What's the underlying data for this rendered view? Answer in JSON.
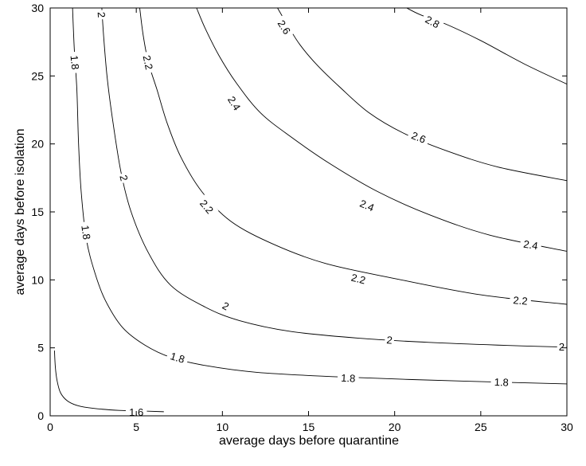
{
  "chart_data": {
    "type": "contour",
    "title": "",
    "xlabel": "average days before quarantine",
    "ylabel": "average days before isolation",
    "xlim": [
      0,
      30
    ],
    "ylim": [
      0,
      30
    ],
    "xticks": [
      "0",
      "5",
      "10",
      "15",
      "20",
      "25",
      "30"
    ],
    "yticks": [
      "0",
      "5",
      "10",
      "15",
      "20",
      "25",
      "30"
    ],
    "grid": false,
    "contours": [
      {
        "level": "1.6",
        "points": [
          [
            0.25,
            4.8
          ],
          [
            0.3,
            3.6
          ],
          [
            0.4,
            2.6
          ],
          [
            0.6,
            1.7
          ],
          [
            1.0,
            1.1
          ],
          [
            1.6,
            0.75
          ],
          [
            2.5,
            0.55
          ],
          [
            4.0,
            0.4
          ],
          [
            5.5,
            0.35
          ],
          [
            6.6,
            0.3
          ]
        ],
        "labels": [
          {
            "text": "1.6",
            "x": 5.0,
            "y": 0.3,
            "angle": 0
          }
        ]
      },
      {
        "level": "1.8",
        "points": [
          [
            1.3,
            30
          ],
          [
            1.4,
            27
          ],
          [
            1.55,
            24
          ],
          [
            1.65,
            20
          ],
          [
            1.8,
            16.5
          ],
          [
            2.1,
            13
          ],
          [
            2.6,
            10.5
          ],
          [
            3.2,
            8.5
          ],
          [
            4.2,
            6.5
          ],
          [
            5.5,
            5.2
          ],
          [
            7,
            4.3
          ],
          [
            9,
            3.7
          ],
          [
            12,
            3.2
          ],
          [
            17,
            2.85
          ],
          [
            24,
            2.55
          ],
          [
            30,
            2.35
          ]
        ],
        "labels": [
          {
            "text": "1.8",
            "x": 1.45,
            "y": 26,
            "angle": 84
          },
          {
            "text": "1.8",
            "x": 2.1,
            "y": 13.5,
            "angle": 82
          },
          {
            "text": "1.8",
            "x": 7.4,
            "y": 4.3,
            "angle": 17
          },
          {
            "text": "1.8",
            "x": 17.3,
            "y": 2.8,
            "angle": 3
          },
          {
            "text": "1.8",
            "x": 26.2,
            "y": 2.5,
            "angle": 2
          }
        ]
      },
      {
        "level": "2",
        "points": [
          [
            3,
            30
          ],
          [
            3.1,
            28
          ],
          [
            3.3,
            25
          ],
          [
            3.6,
            22
          ],
          [
            4.1,
            18
          ],
          [
            4.7,
            15
          ],
          [
            5.7,
            12
          ],
          [
            7,
            9.6
          ],
          [
            9,
            8
          ],
          [
            11,
            7
          ],
          [
            14,
            6.2
          ],
          [
            18,
            5.7
          ],
          [
            22,
            5.4
          ],
          [
            26,
            5.2
          ],
          [
            30,
            5.05
          ]
        ],
        "labels": [
          {
            "text": "2",
            "x": 3.0,
            "y": 29.5,
            "angle": 86
          },
          {
            "text": "2",
            "x": 4.3,
            "y": 17.5,
            "angle": 76
          },
          {
            "text": "2",
            "x": 10.2,
            "y": 8.1,
            "angle": 28
          },
          {
            "text": "2",
            "x": 19.7,
            "y": 5.6,
            "angle": 6
          },
          {
            "text": "2",
            "x": 29.7,
            "y": 5.1,
            "angle": 1
          }
        ]
      },
      {
        "level": "2.2",
        "points": [
          [
            5.2,
            30
          ],
          [
            5.4,
            28
          ],
          [
            5.7,
            26
          ],
          [
            6.2,
            24
          ],
          [
            6.8,
            21.5
          ],
          [
            7.6,
            19
          ],
          [
            8.8,
            16.5
          ],
          [
            10.5,
            14.3
          ],
          [
            13,
            12.6
          ],
          [
            16,
            11.2
          ],
          [
            20,
            10.1
          ],
          [
            25,
            8.9
          ],
          [
            30,
            8.2
          ]
        ],
        "labels": [
          {
            "text": "2.2",
            "x": 5.7,
            "y": 26,
            "angle": 78
          },
          {
            "text": "2.2",
            "x": 9.1,
            "y": 15.4,
            "angle": 50
          },
          {
            "text": "2.2",
            "x": 17.9,
            "y": 10.1,
            "angle": 14
          },
          {
            "text": "2.2",
            "x": 27.3,
            "y": 8.5,
            "angle": 5
          }
        ]
      },
      {
        "level": "2.4",
        "points": [
          [
            8.5,
            30
          ],
          [
            9,
            28.5
          ],
          [
            9.8,
            26.5
          ],
          [
            10.8,
            24.5
          ],
          [
            12.2,
            22.3
          ],
          [
            14,
            20.5
          ],
          [
            16.3,
            18.5
          ],
          [
            19,
            16.5
          ],
          [
            22,
            14.8
          ],
          [
            25.5,
            13.3
          ],
          [
            30,
            12.1
          ]
        ],
        "labels": [
          {
            "text": "2.4",
            "x": 10.7,
            "y": 23,
            "angle": 58
          },
          {
            "text": "2.4",
            "x": 18.4,
            "y": 15.5,
            "angle": 22
          },
          {
            "text": "2.4",
            "x": 27.9,
            "y": 12.6,
            "angle": 9
          }
        ]
      },
      {
        "level": "2.6",
        "points": [
          [
            13.2,
            30
          ],
          [
            13.8,
            28.7
          ],
          [
            14.5,
            27.3
          ],
          [
            15.5,
            25.8
          ],
          [
            16.8,
            24.2
          ],
          [
            18.5,
            22.3
          ],
          [
            20.5,
            20.8
          ],
          [
            23,
            19.5
          ],
          [
            26,
            18.3
          ],
          [
            30,
            17.3
          ]
        ],
        "labels": [
          {
            "text": "2.6",
            "x": 13.6,
            "y": 28.6,
            "angle": 57
          },
          {
            "text": "2.6",
            "x": 21.4,
            "y": 20.5,
            "angle": 22
          }
        ]
      },
      {
        "level": "2.8",
        "points": [
          [
            20.7,
            30
          ],
          [
            21.5,
            29.5
          ],
          [
            23,
            28.8
          ],
          [
            25,
            27.6
          ],
          [
            27.5,
            25.9
          ],
          [
            30,
            24.4
          ]
        ],
        "labels": [
          {
            "text": "2.8",
            "x": 22.2,
            "y": 29.0,
            "angle": 28
          }
        ]
      }
    ]
  }
}
